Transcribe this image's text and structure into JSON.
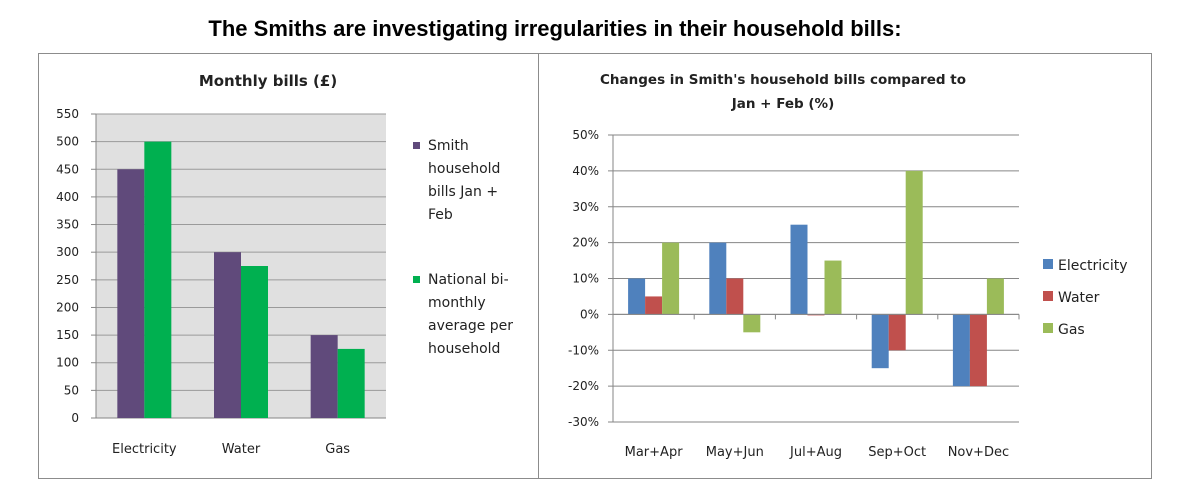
{
  "page": {
    "title": "The Smiths are investigating irregularities in their household bills:"
  },
  "chart_data": [
    {
      "type": "bar",
      "title": "Monthly bills (£)",
      "xlabel": "",
      "ylabel": "",
      "categories": [
        "Electricity",
        "Water",
        "Gas"
      ],
      "series": [
        {
          "name": "Smith household bills Jan + Feb",
          "legend_lines": [
            "Smith",
            "household",
            "bills Jan +",
            "Feb"
          ],
          "color": "#604A7B",
          "values": [
            450,
            300,
            150
          ]
        },
        {
          "name": "National bi-monthly average per household",
          "legend_lines": [
            "National bi-",
            "monthly",
            "average per",
            "household"
          ],
          "color": "#00B050",
          "values": [
            500,
            275,
            125
          ]
        }
      ],
      "ylim": [
        0,
        550
      ],
      "yticks": [
        0,
        50,
        100,
        150,
        200,
        250,
        300,
        350,
        400,
        450,
        500,
        550
      ],
      "grid": true,
      "plot_background": "#E0E0E0",
      "legend_position": "right"
    },
    {
      "type": "bar",
      "title": "Changes in Smith's household bills compared to Jan + Feb (%)",
      "title_lines": [
        "Changes in Smith's household bills compared to",
        "Jan + Feb (%)"
      ],
      "xlabel": "",
      "ylabel": "",
      "categories": [
        "Mar+Apr",
        "May+Jun",
        "Jul+Aug",
        "Sep+Oct",
        "Nov+Dec"
      ],
      "series": [
        {
          "name": "Electricity",
          "color": "#4F81BD",
          "values": [
            10,
            20,
            25,
            -15,
            -20
          ]
        },
        {
          "name": "Water",
          "color": "#C0504D",
          "values": [
            5,
            10,
            0,
            -10,
            -20
          ]
        },
        {
          "name": "Gas",
          "color": "#9BBB59",
          "values": [
            20,
            -5,
            15,
            40,
            10
          ]
        }
      ],
      "ylim": [
        -30,
        50
      ],
      "yticks": [
        -30,
        -20,
        -10,
        0,
        10,
        20,
        30,
        40,
        50
      ],
      "ytick_labels": [
        "-30%",
        "-20%",
        "-10%",
        "0%",
        "10%",
        "20%",
        "30%",
        "40%",
        "50%"
      ],
      "grid": true,
      "legend_position": "right"
    }
  ]
}
